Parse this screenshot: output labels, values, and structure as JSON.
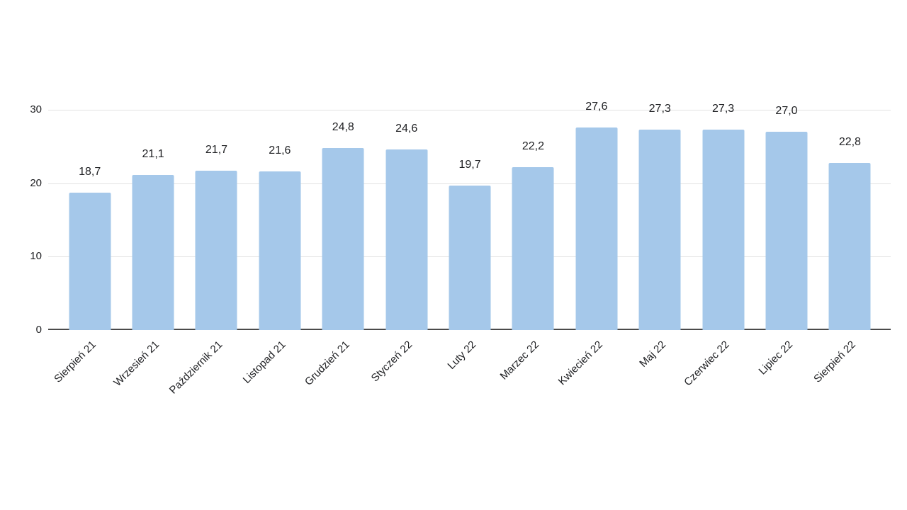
{
  "chart_data": {
    "type": "bar",
    "categories": [
      "Sierpień 21",
      "Wrzesień 21",
      "Październik 21",
      "Listopad 21",
      "Grudzień 21",
      "Styczeń 22",
      "Luty 22",
      "Marzec 22",
      "Kwiecień 22",
      "Maj 22",
      "Czerwiec 22",
      "Lipiec 22",
      "Sierpień 22"
    ],
    "values": [
      18.7,
      21.1,
      21.7,
      21.6,
      24.8,
      24.6,
      19.7,
      22.2,
      27.6,
      27.3,
      27.3,
      27.0,
      22.8
    ],
    "value_labels": [
      "18,7",
      "21,1",
      "21,7",
      "21,6",
      "24,8",
      "24,6",
      "19,7",
      "22,2",
      "27,6",
      "27,3",
      "27,3",
      "27,0",
      "22,8"
    ],
    "decimal_separator": ",",
    "yticks": [
      0,
      10,
      20,
      30
    ],
    "ylim": [
      0,
      30
    ],
    "grid": true,
    "legend_position": "none",
    "colors": {
      "bar": "#a5c8ea",
      "gridline": "#e2e2e2",
      "axis_line": "#4a4a4a",
      "text": "#202124",
      "background": "#ffffff"
    }
  }
}
